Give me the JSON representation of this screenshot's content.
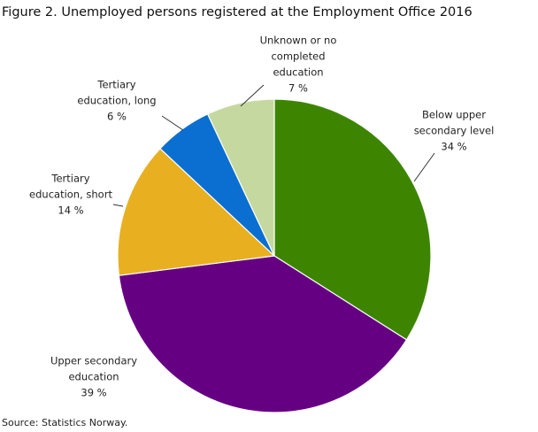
{
  "chart_data": {
    "type": "pie",
    "title": "Figure 2. Unemployed persons registered at the Employment Office 2016",
    "source": "Source: Statistics Norway.",
    "categories": [
      [
        "Below upper",
        "secondary level"
      ],
      [
        "Upper secondary",
        "education"
      ],
      [
        "Tertiary",
        "education, short"
      ],
      [
        "Tertiary",
        "education, long"
      ],
      [
        "Unknown or no",
        "completed",
        "education"
      ]
    ],
    "values": [
      34,
      39,
      14,
      6,
      7
    ],
    "value_labels": [
      "34 %",
      "39 %",
      "14 %",
      "6 %",
      "7 %"
    ],
    "colors": [
      "#3d8500",
      "#660083",
      "#e8b020",
      "#0a6fd0",
      "#c5d8a0"
    ]
  }
}
